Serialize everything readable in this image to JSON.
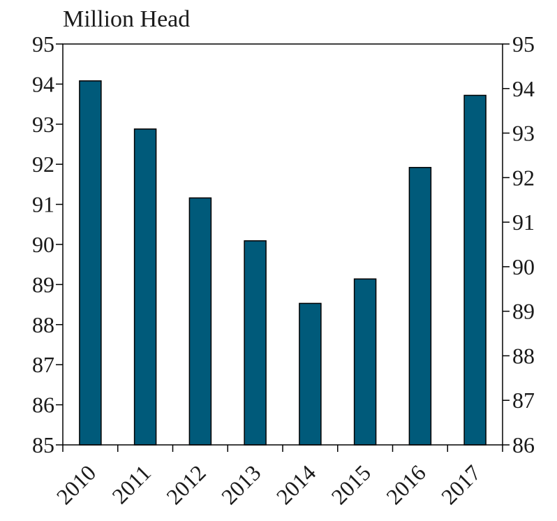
{
  "chart_data": {
    "type": "bar",
    "title": "Million Head",
    "categories": [
      "2010",
      "2011",
      "2012",
      "2013",
      "2014",
      "2015",
      "2016",
      "2017"
    ],
    "values": [
      94.08,
      92.88,
      91.16,
      90.09,
      88.53,
      89.14,
      91.92,
      93.72
    ],
    "ylim_left": [
      85,
      95
    ],
    "yticks_left": [
      "85",
      "86",
      "87",
      "88",
      "89",
      "90",
      "91",
      "92",
      "93",
      "94",
      "95"
    ],
    "ylim_right": [
      86,
      95
    ],
    "yticks_right": [
      "86",
      "87",
      "88",
      "89",
      "90",
      "91",
      "92",
      "93",
      "94",
      "95"
    ],
    "bar_color": "#005a7a",
    "grid": false,
    "legend": "none"
  }
}
